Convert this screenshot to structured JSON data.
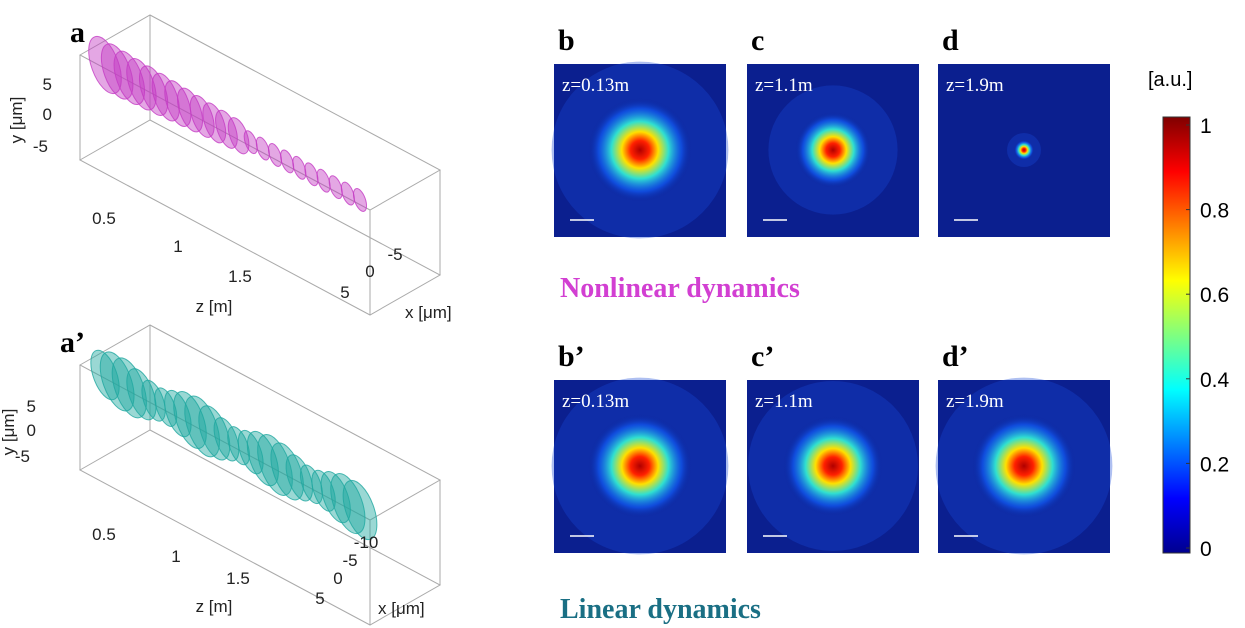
{
  "panels_3d": [
    {
      "label": "a",
      "y_axis_label": "y [μm]",
      "y_ticks": [
        "5",
        "0",
        "-5"
      ],
      "z_axis_label": "z [m]",
      "z_ticks": [
        "0.5",
        "1",
        "1.5"
      ],
      "x_axis_label": "x [μm]",
      "x_ticks": [
        "-5",
        "0",
        "5"
      ]
    },
    {
      "label": "a’",
      "y_axis_label": "y [μm]",
      "y_ticks": [
        "5",
        "0",
        "-5"
      ],
      "z_axis_label": "z [m]",
      "z_ticks": [
        "0.5",
        "1",
        "1.5"
      ],
      "x_axis_label": "x [μm]",
      "x_ticks": [
        "-10",
        "-5",
        "0",
        "5"
      ]
    }
  ],
  "maps": [
    {
      "label": "b",
      "z": "z=0.13m"
    },
    {
      "label": "c",
      "z": "z=1.1m"
    },
    {
      "label": "d",
      "z": "z=1.9m"
    },
    {
      "label": "b’",
      "z": "z=0.13m"
    },
    {
      "label": "c’",
      "z": "z=1.1m"
    },
    {
      "label": "d’",
      "z": "z=1.9m"
    }
  ],
  "captions": {
    "nonlinear": "Nonlinear dynamics",
    "linear": "Linear dynamics"
  },
  "colorbar": {
    "unit": "[a.u.]",
    "ticks": [
      0,
      0.2,
      0.4,
      0.6,
      0.8,
      1
    ]
  }
}
